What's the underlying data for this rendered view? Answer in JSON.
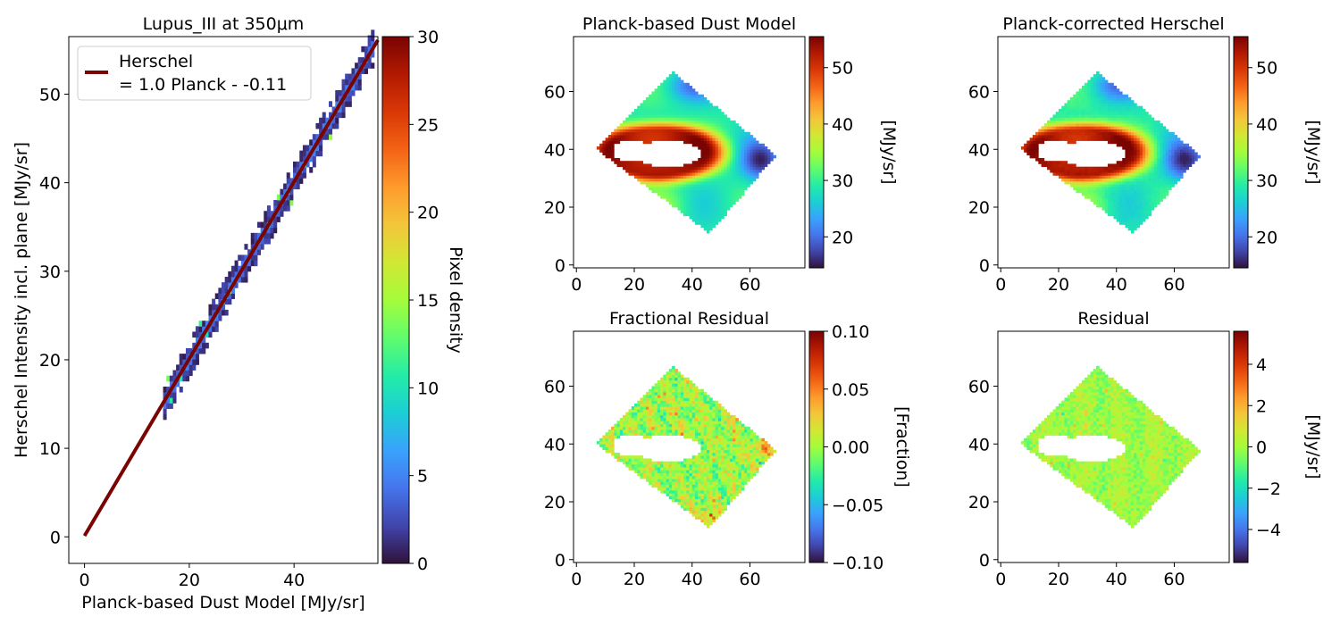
{
  "palette": {
    "turbo_stops": [
      "#30123b",
      "#4145ab",
      "#4675ed",
      "#39a2fc",
      "#1bcfd4",
      "#24eca6",
      "#61fc6c",
      "#a4fc3b",
      "#d1e834",
      "#f3c63a",
      "#fe9b2d",
      "#f36315",
      "#d93806",
      "#b11901",
      "#7a0402"
    ],
    "line_color": "#7a0402"
  },
  "chart_data": [
    {
      "type": "heatmap",
      "variant": "2d-density-with-fit",
      "title": "Lupus_III at 350μm",
      "xlabel": "Planck-based Dust Model [MJy/sr]",
      "ylabel": "Herschel Intensity incl. plane [MJy/sr]",
      "xlim": [
        -3,
        56
      ],
      "ylim": [
        -3,
        56.5
      ],
      "xticks": [
        0,
        20,
        40
      ],
      "yticks": [
        0,
        10,
        20,
        30,
        40,
        50
      ],
      "fit_line": {
        "slope": 1.0,
        "intercept": 0.11,
        "x_range": [
          0,
          56
        ]
      },
      "legend": {
        "position": "upper-left",
        "entries": [
          {
            "line1": "Herschel",
            "line2": "= 1.0 Planck - -0.11"
          }
        ]
      },
      "density_range": [
        15,
        55
      ],
      "colorbar": {
        "label": "Pixel density",
        "range": [
          0,
          30
        ],
        "ticks": [
          0,
          5,
          10,
          15,
          20,
          25,
          30
        ]
      }
    },
    {
      "type": "heatmap",
      "variant": "map",
      "field": "model",
      "title": "Planck-based Dust Model",
      "xlim": [
        -1,
        79
      ],
      "ylim": [
        -1,
        79
      ],
      "xticks": [
        0,
        20,
        40,
        60
      ],
      "yticks": [
        0,
        20,
        40,
        60
      ],
      "colorbar": {
        "label": "[MJy/sr]",
        "range": [
          14.5,
          55.5
        ],
        "ticks": [
          20,
          30,
          40,
          50
        ]
      }
    },
    {
      "type": "heatmap",
      "variant": "map",
      "field": "model",
      "title": "Planck-corrected Herschel",
      "xlim": [
        -1,
        79
      ],
      "ylim": [
        -1,
        79
      ],
      "xticks": [
        0,
        20,
        40,
        60
      ],
      "yticks": [
        0,
        20,
        40,
        60
      ],
      "colorbar": {
        "label": "[MJy/sr]",
        "range": [
          14.5,
          55.5
        ],
        "ticks": [
          20,
          30,
          40,
          50
        ]
      }
    },
    {
      "type": "heatmap",
      "variant": "map",
      "field": "fraction",
      "title": "Fractional Residual",
      "xlim": [
        -1,
        79
      ],
      "ylim": [
        -1,
        79
      ],
      "xticks": [
        0,
        20,
        40,
        60
      ],
      "yticks": [
        0,
        20,
        40,
        60
      ],
      "colorbar": {
        "label": "[Fraction]",
        "range": [
          -0.1,
          0.1
        ],
        "ticks": [
          -0.1,
          -0.05,
          0.0,
          0.05,
          0.1
        ],
        "tick_labels": [
          "−0.10",
          "−0.05",
          "0.00",
          "0.05",
          "0.10"
        ]
      }
    },
    {
      "type": "heatmap",
      "variant": "map",
      "field": "residual",
      "title": "Residual",
      "xlim": [
        -1,
        79
      ],
      "ylim": [
        -1,
        79
      ],
      "xticks": [
        0,
        20,
        40,
        60
      ],
      "yticks": [
        0,
        20,
        40,
        60
      ],
      "colorbar": {
        "label": "[MJy/sr]",
        "range": [
          -5.6,
          5.6
        ],
        "ticks": [
          -4,
          -2,
          0,
          2,
          4
        ],
        "tick_labels": [
          "−4",
          "−2",
          "0",
          "2",
          "4"
        ]
      }
    }
  ],
  "map_region": {
    "corners": [
      [
        7,
        40
      ],
      [
        33,
        67
      ],
      [
        69,
        38
      ],
      [
        46,
        11
      ]
    ],
    "holes": [
      {
        "cx": 19,
        "cy": 39.5,
        "rx": 6.5,
        "ry": 4
      },
      {
        "cx": 31.5,
        "cy": 38.5,
        "rx": 11.5,
        "ry": 4.5
      }
    ]
  }
}
